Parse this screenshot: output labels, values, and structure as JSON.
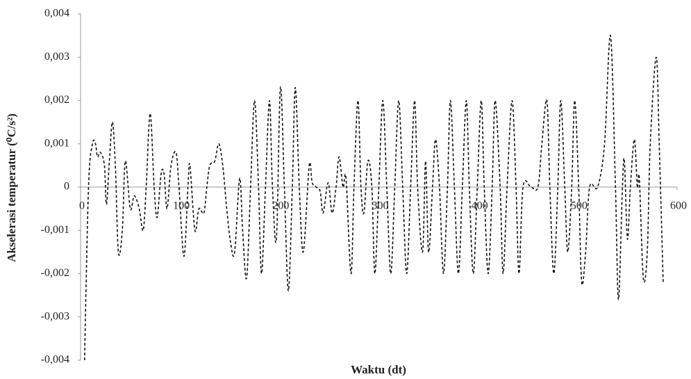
{
  "chart_data": {
    "type": "line",
    "xlabel": "Waktu (dt)",
    "ylabel": "Akselerasi temperatur (⁰C/s²)",
    "xlim": [
      0,
      600
    ],
    "xticks": [
      0,
      100,
      200,
      300,
      400,
      500,
      600
    ],
    "ylim": [
      -0.004,
      0.004
    ],
    "yticks": [
      {
        "value": -0.004,
        "label": "-0,004"
      },
      {
        "value": -0.003,
        "label": "-0,003"
      },
      {
        "value": -0.002,
        "label": "-0,002"
      },
      {
        "value": -0.001,
        "label": "-0,001"
      },
      0,
      {
        "value": 0.001,
        "label": "0,001"
      },
      {
        "value": 0.002,
        "label": "0,002"
      },
      {
        "value": 0.003,
        "label": "0,003"
      },
      {
        "value": 0.004,
        "label": "0,004"
      }
    ],
    "grid": false,
    "series": [
      {
        "color": "#111111",
        "x": [
          4,
          8,
          12,
          15,
          17,
          20,
          24,
          26,
          29,
          32,
          35,
          38,
          42,
          45,
          50,
          54,
          59,
          63,
          66,
          70,
          74,
          77,
          81,
          84,
          87,
          91,
          96,
          99,
          104,
          108,
          110,
          115,
          119,
          124,
          127,
          130,
          135,
          139,
          143,
          147,
          151,
          155,
          160,
          163,
          167,
          171,
          175,
          179,
          182,
          186,
          190,
          193,
          197,
          201,
          205,
          209,
          213,
          216,
          220,
          224,
          230,
          233,
          237,
          241,
          244,
          249,
          253,
          257,
          260,
          264,
          267,
          272,
          275,
          279,
          282,
          285,
          289,
          293,
          296,
          300,
          304,
          308,
          312,
          316,
          320,
          324,
          328,
          332,
          336,
          339,
          344,
          347,
          350,
          354,
          357,
          361,
          365,
          369,
          372,
          376,
          380,
          384,
          388,
          391,
          395,
          399,
          403,
          406,
          410,
          414,
          417,
          422,
          425,
          429,
          434,
          438,
          441,
          445,
          453,
          460,
          464,
          469,
          472,
          476,
          480,
          483,
          487,
          490,
          494,
          497,
          501,
          504,
          508,
          512,
          520,
          527,
          533,
          538,
          541,
          545,
          547,
          550,
          553,
          557,
          560,
          562,
          566,
          570,
          573,
          579,
          582,
          586
        ],
        "values": [
          -0.004,
          0,
          0.001,
          0.001,
          0.0007,
          0.0008,
          0.0005,
          -0.0004,
          0.0006,
          0.0015,
          0.0005,
          -0.0015,
          -0.001,
          0.0006,
          -0.0005,
          -0.0002,
          -0.0005,
          -0.001,
          0,
          0.0017,
          0,
          -0.0007,
          0.0003,
          0.0003,
          -0.0005,
          0.0005,
          0.0008,
          0,
          -0.0016,
          0,
          0.0005,
          -0.001,
          -0.0005,
          -0.0006,
          0,
          0.0005,
          0.0006,
          0.001,
          0.0005,
          -0.0005,
          -0.0013,
          -0.0015,
          0.0002,
          -0.001,
          -0.0021,
          0,
          0.002,
          0,
          -0.002,
          0,
          0.002,
          0,
          -0.0012,
          0.0023,
          0,
          -0.0024,
          0,
          0.0023,
          0,
          -0.0015,
          0.0005,
          0.0001,
          0,
          -0.0001,
          -0.0006,
          0.0001,
          -0.0006,
          0,
          0.0007,
          0,
          0.0002,
          -0.002,
          0,
          0.002,
          0,
          -0.0006,
          0.0006,
          0,
          -0.002,
          0,
          0.002,
          0,
          -0.002,
          0,
          0.002,
          0,
          -0.002,
          0,
          0.002,
          0,
          -0.0015,
          0.0006,
          -0.0015,
          0,
          0.0011,
          0,
          -0.002,
          0,
          0.002,
          0,
          -0.002,
          0,
          0.002,
          0,
          -0.002,
          0,
          0.002,
          0,
          -0.002,
          0,
          0.002,
          0,
          -0.002,
          0,
          0.002,
          0,
          -0.002,
          0,
          0,
          0,
          0.001,
          0.002,
          0,
          -0.002,
          0,
          0.002,
          0,
          -0.0015,
          0,
          0.002,
          0,
          -0.0022,
          -0.0015,
          0,
          0,
          0.001,
          0.0035,
          0,
          -0.0026,
          0,
          0.0006,
          -0.0012,
          0,
          0.0011,
          0,
          0.0002,
          -0.0021,
          -0.0015,
          0.001,
          0.003,
          0.001,
          -0.0022
        ]
      }
    ]
  }
}
